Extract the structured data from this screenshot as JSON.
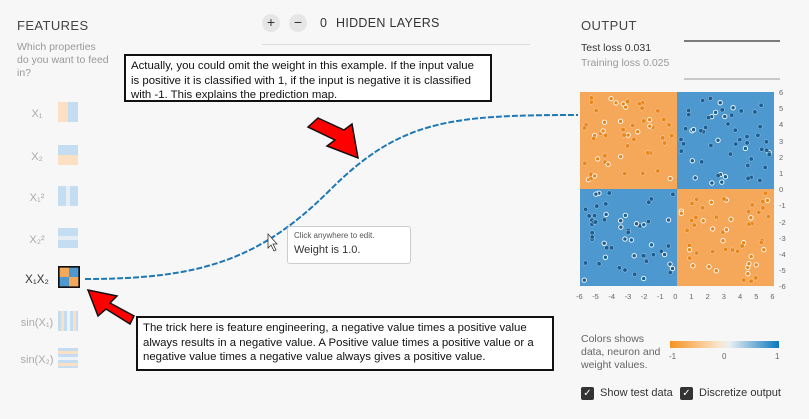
{
  "features": {
    "title": "FEATURES",
    "question": "Which properties do you want to feed in?",
    "items": [
      {
        "label": "X₁",
        "selected": false
      },
      {
        "label": "X₂",
        "selected": false
      },
      {
        "label": "X₁²",
        "selected": false
      },
      {
        "label": "X₂²",
        "selected": false
      },
      {
        "label": "X₁X₂",
        "selected": true
      },
      {
        "label": "sin(X₁)",
        "selected": false
      },
      {
        "label": "sin(X₂)",
        "selected": false
      }
    ]
  },
  "hidden_layers": {
    "add_icon": "plus",
    "remove_icon": "minus",
    "count": "0",
    "label": "HIDDEN LAYERS"
  },
  "output": {
    "title": "OUTPUT",
    "test_loss_label": "Test loss",
    "test_loss_value": "0.031",
    "training_loss_label": "Training loss",
    "training_loss_value": "0.025",
    "y_ticks": [
      "6",
      "5",
      "4",
      "3",
      "2",
      "1",
      "0",
      "-1",
      "-2",
      "-3",
      "-4",
      "-5",
      "-6"
    ],
    "x_ticks": [
      "-6",
      "-5",
      "-4",
      "-3",
      "-2",
      "-1",
      "0",
      "1",
      "2",
      "3",
      "4",
      "5",
      "6"
    ],
    "colors_label": "Colors shows data, neuron and weight values.",
    "scale_min": "-1",
    "scale_mid": "0",
    "scale_max": "1",
    "show_test_data": "Show test data",
    "discretize_output": "Discretize output"
  },
  "weight_tooltip": {
    "hint": "Click anywhere to edit.",
    "value": "Weight is 1.0."
  },
  "annotations": {
    "top": "Actually, you could omit the weight in this example. If the input value is positive it is classified with 1, if the input is negative it is classified with -1. This explains the prediction map.",
    "bottom": "The trick here is feature engineering, a negative value times a positive value always results in a negative value. A Positive value times a positive value or a negative value times a negative value always gives a positive value."
  },
  "colors": {
    "orange": "#f5a75a",
    "blue": "#4c98cf",
    "arrow_red": "#ff0000",
    "link_blue": "#1f77b4"
  }
}
